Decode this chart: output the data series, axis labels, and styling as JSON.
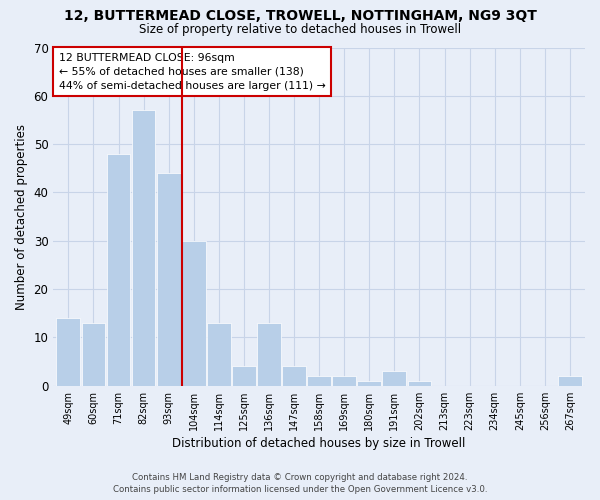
{
  "title": "12, BUTTERMEAD CLOSE, TROWELL, NOTTINGHAM, NG9 3QT",
  "subtitle": "Size of property relative to detached houses in Trowell",
  "xlabel": "Distribution of detached houses by size in Trowell",
  "ylabel": "Number of detached properties",
  "categories": [
    "49sqm",
    "60sqm",
    "71sqm",
    "82sqm",
    "93sqm",
    "104sqm",
    "114sqm",
    "125sqm",
    "136sqm",
    "147sqm",
    "158sqm",
    "169sqm",
    "180sqm",
    "191sqm",
    "202sqm",
    "213sqm",
    "223sqm",
    "234sqm",
    "245sqm",
    "256sqm",
    "267sqm"
  ],
  "values": [
    14,
    13,
    48,
    57,
    44,
    30,
    13,
    4,
    13,
    4,
    2,
    2,
    1,
    3,
    1,
    0,
    0,
    0,
    0,
    0,
    2
  ],
  "bar_color": "#b8cfe8",
  "bar_edge_color": "#ffffff",
  "grid_color": "#c8d4e8",
  "background_color": "#e8eef8",
  "vline_color": "#cc0000",
  "vline_x_pos": 4.55,
  "ylim": [
    0,
    70
  ],
  "yticks": [
    0,
    10,
    20,
    30,
    40,
    50,
    60,
    70
  ],
  "annotation_title": "12 BUTTERMEAD CLOSE: 96sqm",
  "annotation_line1": "← 55% of detached houses are smaller (138)",
  "annotation_line2": "44% of semi-detached houses are larger (111) →",
  "annotation_box_color": "#ffffff",
  "annotation_border_color": "#cc0000",
  "footer1": "Contains HM Land Registry data © Crown copyright and database right 2024.",
  "footer2": "Contains public sector information licensed under the Open Government Licence v3.0."
}
